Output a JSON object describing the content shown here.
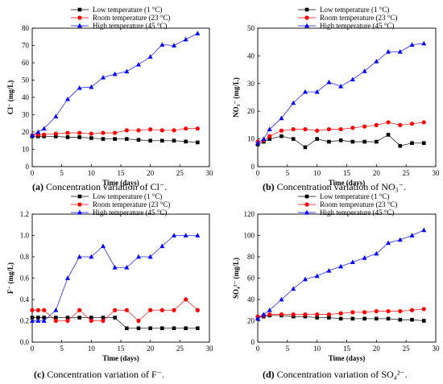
{
  "chart_data": [
    {
      "type": "line",
      "ylabel": "Cl⁻ (mg/L)",
      "xlabel": "Time (days)",
      "xlim": [
        0,
        30
      ],
      "ylim": [
        0,
        80
      ],
      "xticks": [
        0,
        5,
        10,
        15,
        20,
        25,
        30
      ],
      "yticks": [
        0,
        10,
        20,
        30,
        40,
        50,
        60,
        70,
        80
      ],
      "caption_letter": "(a)",
      "caption_text": " Concentration variation of Cl⁻.",
      "x": [
        0,
        1,
        2,
        4,
        6,
        8,
        10,
        12,
        14,
        16,
        18,
        20,
        22,
        24,
        26,
        28
      ],
      "series": [
        {
          "name": "Low temperature (1 °C)",
          "color": "#000000",
          "marker": "square",
          "values": [
            17.5,
            17.5,
            17.5,
            17.5,
            17,
            17,
            16.5,
            16,
            16,
            16,
            15.5,
            15,
            15,
            15,
            14.5,
            14
          ]
        },
        {
          "name": "Room temperature (23 °C)",
          "color": "#ff0000",
          "marker": "circle",
          "values": [
            18,
            18.5,
            18.5,
            19,
            19.5,
            19.5,
            19,
            19.5,
            19.5,
            21,
            21,
            21.5,
            21,
            21,
            22,
            22
          ]
        },
        {
          "name": "High temperature (45 °C)",
          "color": "#0000ff",
          "marker": "triangle",
          "values": [
            18,
            20,
            22,
            29,
            39,
            45.5,
            46,
            51.5,
            53.5,
            55,
            59,
            63.5,
            70.5,
            70,
            73.5,
            77
          ]
        }
      ]
    },
    {
      "type": "line",
      "ylabel": "NO₃⁻ (mg/L)",
      "xlabel": "Time (days)",
      "xlim": [
        0,
        30
      ],
      "ylim": [
        0,
        50
      ],
      "xticks": [
        0,
        5,
        10,
        15,
        20,
        25,
        30
      ],
      "yticks": [
        0,
        10,
        20,
        30,
        40,
        50
      ],
      "caption_letter": "(b)",
      "caption_text": " Concentration variation of NO₃⁻.",
      "x": [
        0,
        1,
        2,
        4,
        6,
        8,
        10,
        12,
        14,
        16,
        18,
        20,
        22,
        24,
        26,
        28
      ],
      "series": [
        {
          "name": "Low temperature (1 °C)",
          "color": "#000000",
          "marker": "square",
          "values": [
            8,
            9,
            10,
            11,
            10,
            7,
            10,
            9,
            9.5,
            9,
            9,
            9,
            11.5,
            7.5,
            8.5,
            8.5
          ]
        },
        {
          "name": "Room temperature (23 °C)",
          "color": "#ff0000",
          "marker": "circle",
          "values": [
            9,
            9.5,
            11,
            13,
            13.5,
            13.5,
            13,
            13.5,
            13.5,
            14,
            14.5,
            15,
            16,
            15,
            15.5,
            16
          ]
        },
        {
          "name": "High temperature (45 °C)",
          "color": "#0000ff",
          "marker": "triangle",
          "values": [
            8.5,
            10,
            13.5,
            17.5,
            23,
            27,
            27,
            30.5,
            29,
            31.5,
            34.5,
            38,
            41.5,
            41.5,
            44,
            44.5
          ]
        }
      ]
    },
    {
      "type": "line",
      "ylabel": "F⁻ (mg/L)",
      "xlabel": "Time (days)",
      "xlim": [
        0,
        30
      ],
      "ylim": [
        0,
        1.2
      ],
      "xticks": [
        0,
        5,
        10,
        15,
        20,
        25,
        30
      ],
      "yticks": [
        0.0,
        0.2,
        0.4,
        0.6,
        0.8,
        1.0,
        1.2
      ],
      "ytick_decimals": 1,
      "caption_letter": "(c)",
      "caption_text": " Concentration variation of F⁻.",
      "x": [
        0,
        1,
        2,
        4,
        6,
        8,
        10,
        12,
        14,
        16,
        18,
        20,
        22,
        24,
        26,
        28
      ],
      "series": [
        {
          "name": "Low temperature (1 °C)",
          "color": "#000000",
          "marker": "square",
          "values": [
            0.23,
            0.23,
            0.23,
            0.23,
            0.23,
            0.23,
            0.23,
            0.23,
            0.23,
            0.13,
            0.13,
            0.13,
            0.13,
            0.13,
            0.13,
            0.13
          ]
        },
        {
          "name": "Room temperature (23 °C)",
          "color": "#ff0000",
          "marker": "circle",
          "values": [
            0.3,
            0.3,
            0.3,
            0.2,
            0.2,
            0.3,
            0.2,
            0.2,
            0.3,
            0.3,
            0.2,
            0.3,
            0.3,
            0.3,
            0.4,
            0.3
          ]
        },
        {
          "name": "High temperature (45 °C)",
          "color": "#0000ff",
          "marker": "triangle",
          "values": [
            0.2,
            0.2,
            0.2,
            0.3,
            0.6,
            0.8,
            0.8,
            0.9,
            0.7,
            0.7,
            0.8,
            0.8,
            0.9,
            1.0,
            1.0,
            1.0
          ]
        }
      ]
    },
    {
      "type": "line",
      "ylabel": "SO₄²⁻ (mg/L)",
      "xlabel": "Time (days)",
      "xlim": [
        0,
        30
      ],
      "ylim": [
        0,
        120
      ],
      "xticks": [
        0,
        5,
        10,
        15,
        20,
        25,
        30
      ],
      "yticks": [
        0,
        20,
        40,
        60,
        80,
        100,
        120
      ],
      "caption_letter": "(d)",
      "caption_text": " Concentration variation of SO₄²⁻.",
      "x": [
        0,
        1,
        2,
        4,
        6,
        8,
        10,
        12,
        14,
        16,
        18,
        20,
        22,
        24,
        26,
        28
      ],
      "series": [
        {
          "name": "Low temperature (1 °C)",
          "color": "#000000",
          "marker": "square",
          "values": [
            23,
            24,
            25,
            25,
            24,
            24,
            23,
            23,
            22,
            22,
            22,
            22,
            22,
            21,
            21,
            20
          ]
        },
        {
          "name": "Room temperature (23 °C)",
          "color": "#ff0000",
          "marker": "circle",
          "values": [
            24,
            25,
            26,
            26,
            26,
            26,
            26,
            26,
            27,
            28,
            28,
            29,
            29,
            29,
            30,
            31
          ]
        },
        {
          "name": "High temperature (45 °C)",
          "color": "#0000ff",
          "marker": "triangle",
          "values": [
            22,
            26,
            30,
            40,
            50,
            59,
            62,
            67,
            71,
            75,
            79,
            83,
            93,
            96,
            100,
            105
          ]
        }
      ]
    }
  ]
}
